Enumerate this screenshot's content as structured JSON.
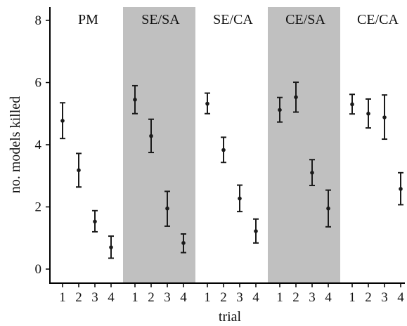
{
  "chart_data": {
    "type": "scatter",
    "subtype": "point-with-error-bars",
    "xlabel": "trial",
    "ylabel": "no. models killed",
    "ylim": [
      0,
      8
    ],
    "yticks": [
      0,
      2,
      4,
      6,
      8
    ],
    "grid": false,
    "panel_shading": "alternate groups shaded grey",
    "colors": {
      "shade": "#c0c0c0",
      "points": "#1a1a1a",
      "axis": "#000000"
    },
    "groups": [
      {
        "label": "PM",
        "shaded": false,
        "trials": [
          "1",
          "2",
          "3",
          "4"
        ],
        "mean": [
          4.77,
          3.18,
          1.53,
          0.7
        ],
        "lower": [
          4.2,
          2.64,
          1.2,
          0.35
        ],
        "upper": [
          5.35,
          3.72,
          1.88,
          1.06
        ]
      },
      {
        "label": "SE/SA",
        "shaded": true,
        "trials": [
          "1",
          "2",
          "3",
          "4"
        ],
        "mean": [
          5.45,
          4.28,
          1.95,
          0.84
        ],
        "lower": [
          5.0,
          3.75,
          1.38,
          0.53
        ],
        "upper": [
          5.9,
          4.82,
          2.5,
          1.13
        ]
      },
      {
        "label": "SE/CA",
        "shaded": false,
        "trials": [
          "1",
          "2",
          "3",
          "4"
        ],
        "mean": [
          5.32,
          3.83,
          2.27,
          1.22
        ],
        "lower": [
          5.0,
          3.43,
          1.85,
          0.84
        ],
        "upper": [
          5.66,
          4.24,
          2.7,
          1.61
        ]
      },
      {
        "label": "CE/SA",
        "shaded": true,
        "trials": [
          "1",
          "2",
          "3",
          "4"
        ],
        "mean": [
          5.12,
          5.53,
          3.1,
          1.95
        ],
        "lower": [
          4.73,
          5.05,
          2.69,
          1.36
        ],
        "upper": [
          5.52,
          6.01,
          3.52,
          2.54
        ]
      },
      {
        "label": "CE/CA",
        "shaded": false,
        "trials": [
          "1",
          "2",
          "3",
          "4"
        ],
        "mean": [
          5.3,
          5.0,
          4.88,
          2.58
        ],
        "lower": [
          4.99,
          4.54,
          4.18,
          2.07
        ],
        "upper": [
          5.62,
          5.47,
          5.6,
          3.1
        ]
      }
    ]
  }
}
